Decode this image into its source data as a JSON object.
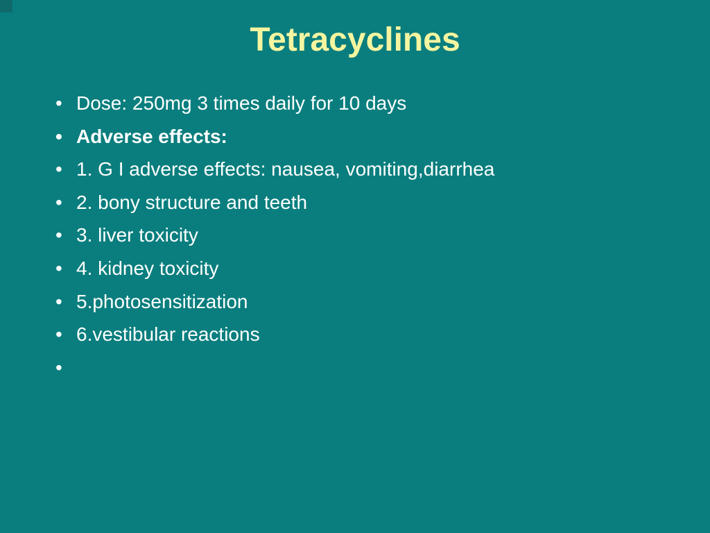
{
  "slide": {
    "background_color": "#0a7e7e",
    "corner_accent_color": "#0f6b6b",
    "title": {
      "text": "Tetracyclines",
      "color": "#f5f5a0",
      "fontsize": 48,
      "fontweight": "bold",
      "align": "center"
    },
    "bullets": [
      {
        "text": "Dose: 250mg 3 times daily for 10 days",
        "bold": false
      },
      {
        "text": "Adverse effects:",
        "bold": true
      },
      {
        "text": "1. G I adverse effects: nausea, vomiting,diarrhea",
        "bold": false
      },
      {
        "text": "2. bony structure and teeth",
        "bold": false
      },
      {
        "text": "3. liver toxicity",
        "bold": false
      },
      {
        "text": "4. kidney toxicity",
        "bold": false
      },
      {
        "text": "5.photosensitization",
        "bold": false
      },
      {
        "text": "6.vestibular reactions",
        "bold": false
      },
      {
        "text": "",
        "bold": false
      }
    ],
    "text_color": "#ffffff",
    "body_fontsize": 28,
    "line_height": 1.7
  }
}
